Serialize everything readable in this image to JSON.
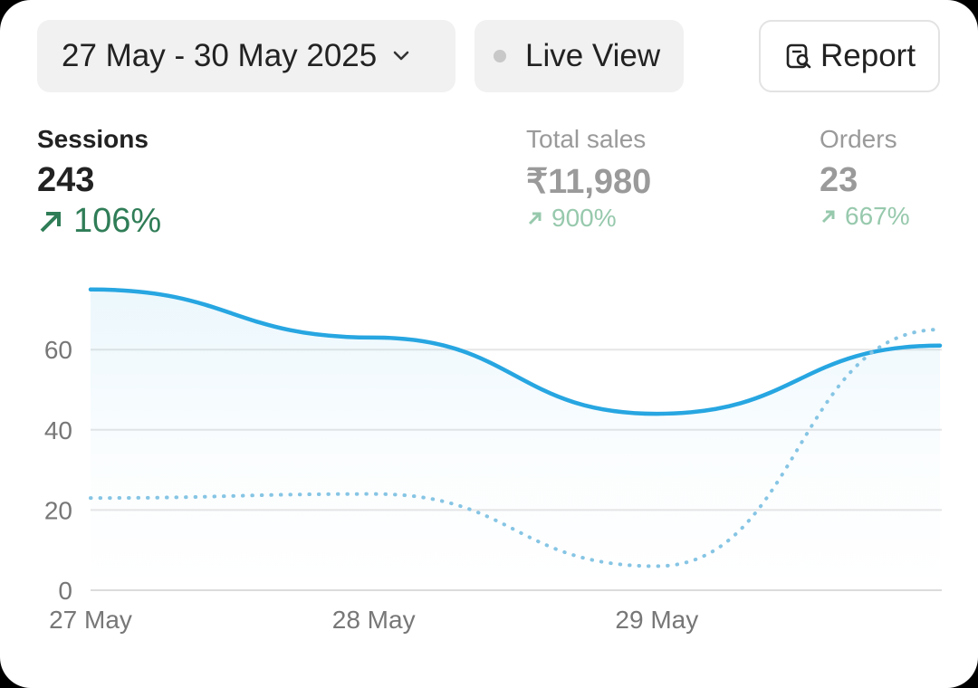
{
  "header": {
    "date_range": "27 May - 30 May 2025",
    "live_view": "Live View",
    "report": "Report"
  },
  "metrics": [
    {
      "label": "Sessions",
      "value": "243",
      "change": "106%"
    },
    {
      "label": "Total sales",
      "value": "₹11,980",
      "change": "900%"
    },
    {
      "label": "Orders",
      "value": "23",
      "change": "667%"
    }
  ],
  "chart_data": {
    "type": "line",
    "categories": [
      "27 May",
      "28 May",
      "29 May",
      null
    ],
    "series": [
      {
        "color": "#27a6e1",
        "style": "solid",
        "values": [
          75,
          63,
          44,
          61
        ]
      },
      {
        "color": "#86c5e4",
        "style": "dotted",
        "values": [
          23,
          24,
          6,
          65
        ]
      }
    ],
    "ylim": [
      0,
      80
    ],
    "yticks": [
      0,
      20,
      40,
      60
    ],
    "grid": true,
    "area_under_first": true
  }
}
